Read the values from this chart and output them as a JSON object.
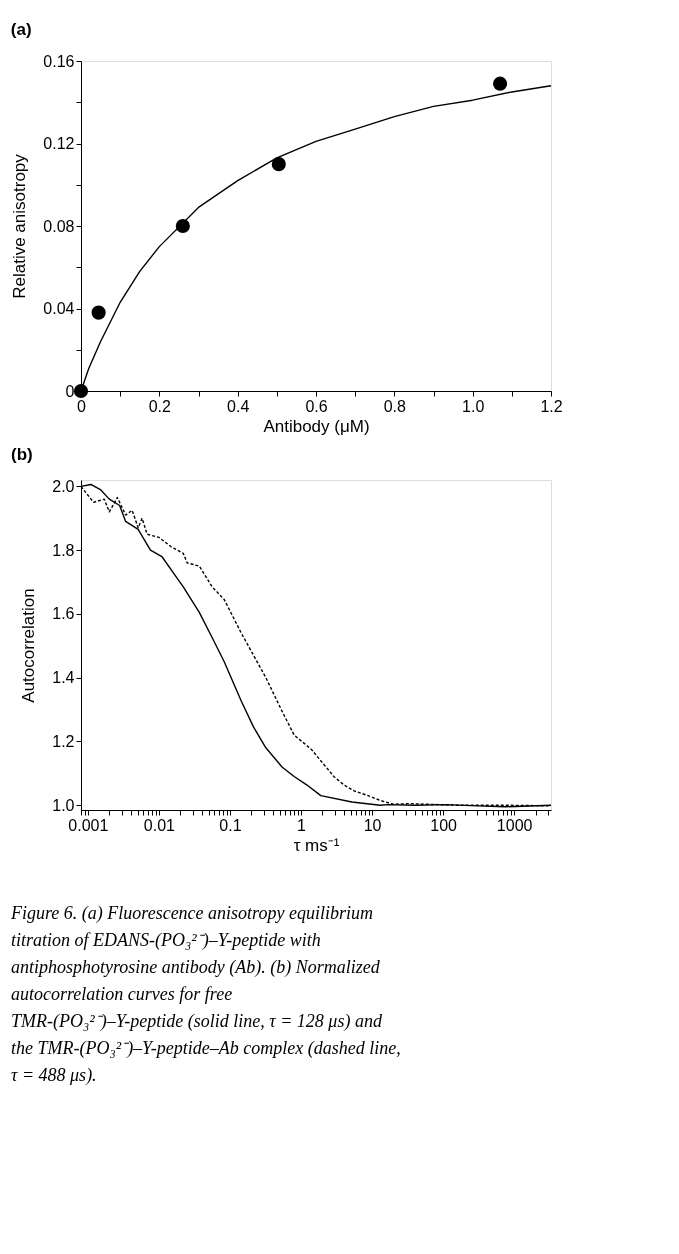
{
  "chart_data": [
    {
      "type": "scatter",
      "title": "(a)",
      "xlabel": "Antibody (μM)",
      "ylabel": "Relative anisotropy",
      "xlim": [
        0,
        1.2
      ],
      "ylim": [
        0,
        0.16
      ],
      "xticks": [
        0,
        {
          "value": 0.1,
          "label": null
        },
        0.2,
        {
          "value": 0.3,
          "label": null
        },
        0.4,
        {
          "value": 0.5,
          "label": null
        },
        0.6,
        {
          "value": 0.7,
          "label": null
        },
        0.8,
        {
          "value": 0.9,
          "label": null
        },
        {
          "value": 1,
          "label": "1.0"
        },
        {
          "value": 1.1,
          "label": null
        },
        1.2
      ],
      "yticks": [
        0,
        {
          "value": 0.02,
          "label": null
        },
        0.04,
        {
          "value": 0.06,
          "label": null
        },
        0.08,
        {
          "value": 0.1,
          "label": null
        },
        0.12,
        {
          "value": 0.14,
          "label": null
        },
        0.16
      ],
      "series": [
        {
          "type": "scatter",
          "color": "#000000",
          "marker": "circle",
          "x": [
            0,
            0.045,
            0.26,
            0.505,
            1.07
          ],
          "values": [
            0,
            0.038,
            0.08,
            0.11,
            0.149
          ]
        },
        {
          "type": "line",
          "color": "#000000",
          "marker": "none",
          "line_style": "solid",
          "x": [
            0,
            0.02,
            0.05,
            0.1,
            0.15,
            0.2,
            0.3,
            0.4,
            0.5,
            0.6,
            0.7,
            0.8,
            0.9,
            1.0,
            1.1,
            1.2
          ],
          "values": [
            0,
            0.011,
            0.024,
            0.043,
            0.058,
            0.07,
            0.089,
            0.102,
            0.113,
            0.121,
            0.127,
            0.133,
            0.138,
            0.141,
            0.145,
            0.148
          ]
        }
      ]
    },
    {
      "type": "line",
      "title": "(b)",
      "xlabel": "τ ms⁻¹",
      "ylabel": "Autocorrelation",
      "log": "x",
      "xlim": [
        0.0008,
        3300
      ],
      "ylim": [
        0.985,
        2.02
      ],
      "xticks": [
        {
          "value": 0.0008,
          "label": null
        },
        {
          "value": 0.0009,
          "label": null
        },
        0.001,
        {
          "value": 0.002,
          "label": null
        },
        {
          "value": 0.003,
          "label": null
        },
        {
          "value": 0.004,
          "label": null
        },
        {
          "value": 0.005,
          "label": null
        },
        {
          "value": 0.006,
          "label": null
        },
        {
          "value": 0.007,
          "label": null
        },
        {
          "value": 0.008,
          "label": null
        },
        {
          "value": 0.009,
          "label": null
        },
        0.01,
        {
          "value": 0.02,
          "label": null
        },
        {
          "value": 0.03,
          "label": null
        },
        {
          "value": 0.04,
          "label": null
        },
        {
          "value": 0.05,
          "label": null
        },
        {
          "value": 0.06,
          "label": null
        },
        {
          "value": 0.07,
          "label": null
        },
        {
          "value": 0.08,
          "label": null
        },
        {
          "value": 0.09,
          "label": null
        },
        0.1,
        {
          "value": 0.2,
          "label": null
        },
        {
          "value": 0.3,
          "label": null
        },
        {
          "value": 0.4,
          "label": null
        },
        {
          "value": 0.5,
          "label": null
        },
        {
          "value": 0.6,
          "label": null
        },
        {
          "value": 0.7,
          "label": null
        },
        {
          "value": 0.8,
          "label": null
        },
        {
          "value": 0.9,
          "label": null
        },
        1,
        {
          "value": 2,
          "label": null
        },
        {
          "value": 3,
          "label": null
        },
        {
          "value": 4,
          "label": null
        },
        {
          "value": 5,
          "label": null
        },
        {
          "value": 6,
          "label": null
        },
        {
          "value": 7,
          "label": null
        },
        {
          "value": 8,
          "label": null
        },
        {
          "value": 9,
          "label": null
        },
        10,
        {
          "value": 20,
          "label": null
        },
        {
          "value": 30,
          "label": null
        },
        {
          "value": 40,
          "label": null
        },
        {
          "value": 50,
          "label": null
        },
        {
          "value": 60,
          "label": null
        },
        {
          "value": 70,
          "label": null
        },
        {
          "value": 80,
          "label": null
        },
        {
          "value": 90,
          "label": null
        },
        100,
        {
          "value": 200,
          "label": null
        },
        {
          "value": 300,
          "label": null
        },
        {
          "value": 400,
          "label": null
        },
        {
          "value": 500,
          "label": null
        },
        {
          "value": 600,
          "label": null
        },
        {
          "value": 700,
          "label": null
        },
        {
          "value": 800,
          "label": null
        },
        {
          "value": 900,
          "label": null
        },
        1000,
        {
          "value": 2000,
          "label": null
        },
        {
          "value": 3000,
          "label": null
        }
      ],
      "yticks": [
        {
          "value": 1,
          "label": "1.0"
        },
        1.2,
        1.4,
        1.6,
        1.8,
        {
          "value": 2,
          "label": "2.0"
        }
      ],
      "series": [
        {
          "color": "#000000",
          "line_style": "solid",
          "x": [
            0.0008,
            0.0011,
            0.0015,
            0.002,
            0.0028,
            0.0034,
            0.0051,
            0.0076,
            0.011,
            0.017,
            0.022,
            0.037,
            0.056,
            0.083,
            0.144,
            0.215,
            0.32,
            0.54,
            0.8,
            1.2,
            1.9,
            5.2,
            13,
            16.6,
            40,
            112,
            300,
            750,
            3300
          ],
          "values": [
            2.0,
            2.006,
            1.99,
            1.96,
            1.94,
            1.89,
            1.865,
            1.8,
            1.78,
            1.72,
            1.685,
            1.605,
            1.526,
            1.45,
            1.327,
            1.245,
            1.18,
            1.12,
            1.09,
            1.064,
            1.03,
            1.01,
            1.0,
            1.002,
            1.0,
            1.002,
            0.998,
            0.995,
            1.0
          ]
        },
        {
          "color": "#000000",
          "line_style": "dashed",
          "x": [
            0.0008,
            0.0012,
            0.0017,
            0.002,
            0.0026,
            0.0034,
            0.0042,
            0.0051,
            0.0058,
            0.0068,
            0.01,
            0.015,
            0.022,
            0.025,
            0.037,
            0.056,
            0.083,
            0.144,
            0.215,
            0.32,
            0.54,
            0.8,
            1.4,
            2.9,
            4,
            5.6,
            8.8,
            13,
            20,
            34,
            150,
            750,
            3300
          ],
          "values": [
            2.0,
            1.95,
            1.96,
            1.92,
            1.965,
            1.91,
            1.925,
            1.87,
            1.9,
            1.85,
            1.84,
            1.81,
            1.79,
            1.76,
            1.75,
            1.685,
            1.645,
            1.54,
            1.47,
            1.4,
            1.295,
            1.22,
            1.175,
            1.09,
            1.064,
            1.045,
            1.03,
            1.015,
            1.003,
            1.005,
            1.0,
            1.0,
            0.998
          ]
        }
      ],
      "annotations": [
        "Figure 6. (a) Fluorescence anisotropy equilibrium titration of EDANS-(PO₃²⁻)–Y-peptide with antiphosphotyrosine antibody (Ab). (b) Normalized autocorrelation curves for free TMR-(PO₃²⁻)–Y-peptide (solid line, τ = 128 μs) and the TMR-(PO₃²⁻)–Y-peptide–Ab complex (dashed line, τ = 488 μs)."
      ]
    }
  ]
}
